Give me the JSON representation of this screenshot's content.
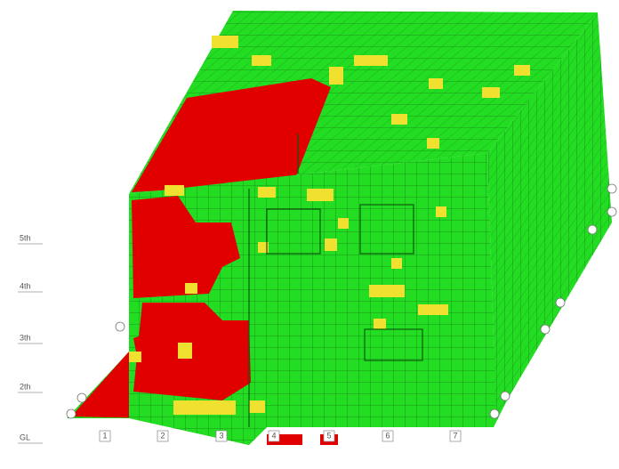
{
  "floor_labels": [
    "5th",
    "4th",
    "3th",
    "2th",
    "GL"
  ],
  "grid_labels": [
    "1",
    "2",
    "3",
    "4",
    "5",
    "6",
    "7"
  ]
}
